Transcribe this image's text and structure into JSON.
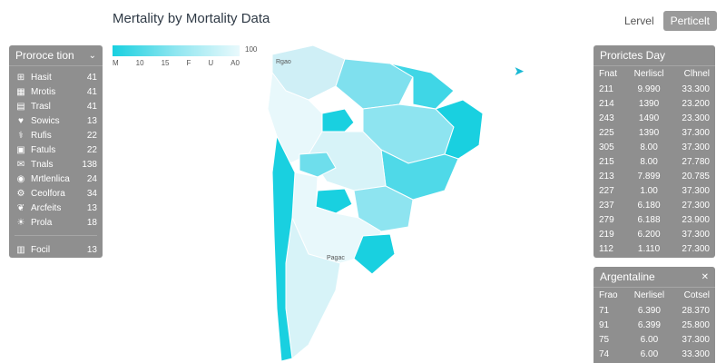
{
  "title": "Mertality by Mortality Data",
  "top_link": "Lervel",
  "top_button": "Perticelt",
  "legend": {
    "max": "100",
    "ticks": [
      "M",
      "10",
      "15",
      "F",
      "U",
      "A0"
    ]
  },
  "map_label_top": "Rgao",
  "map_label_bottom": "Pagac",
  "left_panel": {
    "title": "Proroce tion",
    "items": [
      {
        "icon": "hospital-icon",
        "glyph": "⊞",
        "label": "Hasit",
        "value": "41"
      },
      {
        "icon": "building-icon",
        "glyph": "▦",
        "label": "Mrotis",
        "value": "41"
      },
      {
        "icon": "clipboard-icon",
        "glyph": "▤",
        "label": "Trasl",
        "value": "41"
      },
      {
        "icon": "heart-icon",
        "glyph": "♥",
        "label": "Sowics",
        "value": "13"
      },
      {
        "icon": "stethoscope-icon",
        "glyph": "⚕",
        "label": "Rufis",
        "value": "22"
      },
      {
        "icon": "bus-icon",
        "glyph": "▣",
        "label": "Fatuls",
        "value": "22"
      },
      {
        "icon": "mail-icon",
        "glyph": "✉",
        "label": "Tnals",
        "value": "138"
      },
      {
        "icon": "location-pin-icon",
        "glyph": "◉",
        "label": "Mrtlenlica",
        "value": "24"
      },
      {
        "icon": "gear-icon",
        "glyph": "⚙",
        "label": "Ceolfora",
        "value": "34"
      },
      {
        "icon": "leaf-icon",
        "glyph": "❦",
        "label": "Arcfeits",
        "value": "13"
      },
      {
        "icon": "lightbulb-icon",
        "glyph": "☀",
        "label": "Prola",
        "value": "18"
      }
    ],
    "footer": {
      "icon": "chart-bar-icon",
      "glyph": "▥",
      "label": "Focil",
      "value": "13"
    }
  },
  "right_panel_1": {
    "title": "Prorictes Day",
    "columns": [
      "Fnat",
      "Nerliscl",
      "Clhnel"
    ],
    "rows": [
      [
        "211",
        "9.990",
        "33.300"
      ],
      [
        "214",
        "1390",
        "23.200"
      ],
      [
        "243",
        "1490",
        "23.300"
      ],
      [
        "225",
        "1390",
        "37.300"
      ],
      [
        "305",
        "8.00",
        "37.300"
      ],
      [
        "215",
        "8.00",
        "27.780"
      ],
      [
        "213",
        "7.899",
        "20.785"
      ],
      [
        "227",
        "1.00",
        "37.300"
      ],
      [
        "237",
        "6.180",
        "27.300"
      ],
      [
        "279",
        "6.188",
        "23.900"
      ],
      [
        "219",
        "6.200",
        "37.300"
      ],
      [
        "112",
        "1.110",
        "27.300"
      ]
    ]
  },
  "right_panel_2": {
    "title": "Argentaline",
    "columns": [
      "Frao",
      "Nerlisel",
      "Cotsel"
    ],
    "rows": [
      [
        "71",
        "6.390",
        "28.370"
      ],
      [
        "91",
        "6.399",
        "25.800"
      ],
      [
        "75",
        "6.00",
        "37.300"
      ],
      [
        "74",
        "6.00",
        "33.300"
      ]
    ]
  },
  "colors": {
    "accent": "#19d0e0",
    "panel": "#8f8f8f",
    "light_region": "#e8f8fb"
  }
}
